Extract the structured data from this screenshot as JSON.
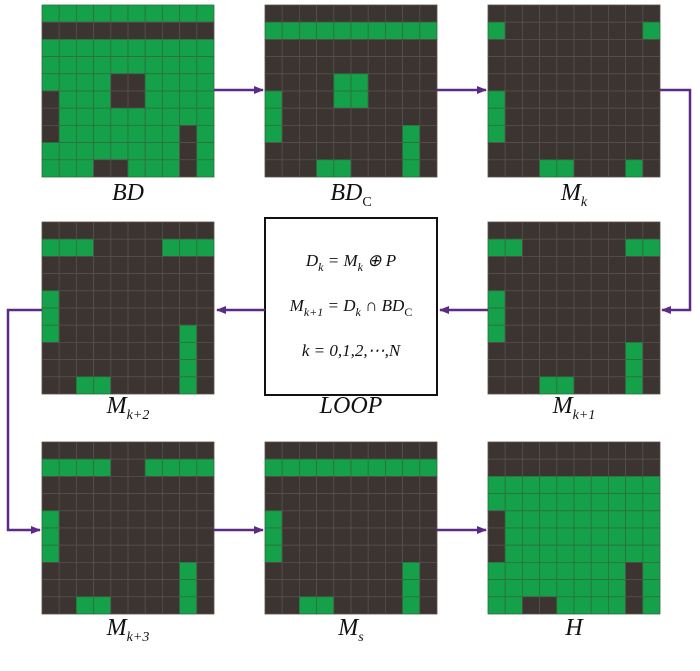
{
  "panels": [
    {
      "label": {
        "base": "BD"
      }
    },
    {
      "label": {
        "base": "BD",
        "sub": "C"
      }
    },
    {
      "label": {
        "base": "M",
        "sub": "k"
      }
    },
    {
      "label": {
        "base": "M",
        "sub": "k+2"
      }
    },
    {
      "label": {
        "base": "LOOP"
      }
    },
    {
      "label": {
        "base": "M",
        "sub": "k+1"
      }
    },
    {
      "label": {
        "base": "M",
        "sub": "k+3"
      }
    },
    {
      "label": {
        "base": "M",
        "sub": "s"
      }
    },
    {
      "label": {
        "base": "H"
      }
    }
  ],
  "loop_box": {
    "lines": [
      [
        {
          "base": "D",
          "sub": "k"
        },
        {
          "base": " = "
        },
        {
          "base": "M",
          "sub": "k"
        },
        {
          "base": " ⊕ P"
        }
      ],
      [
        {
          "base": "M",
          "sub": "k+1"
        },
        {
          "base": " = "
        },
        {
          "base": "D",
          "sub": "k"
        },
        {
          "base": " ∩ "
        },
        {
          "base": "BD",
          "sub": "C"
        }
      ],
      [
        {
          "base": "k = 0,1,2,⋯,N"
        }
      ]
    ]
  }
}
